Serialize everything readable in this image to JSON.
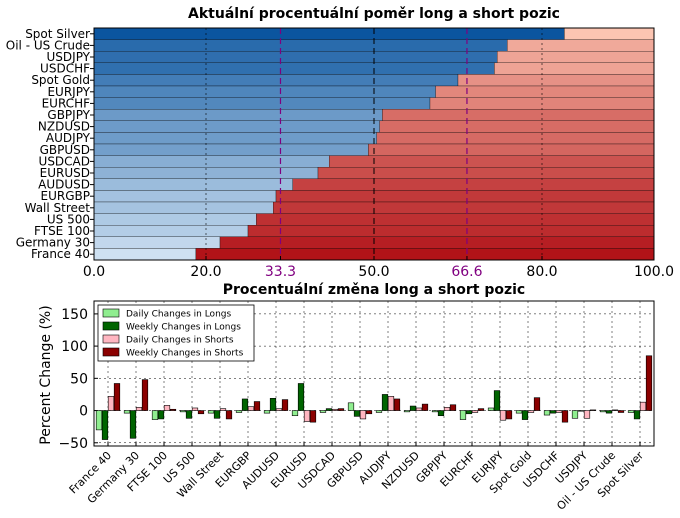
{
  "colors": {
    "long_light": "#cfe1f2",
    "long_dark": "#0b559f",
    "short_light": "#fcc5b2",
    "short_dark": "#b11218",
    "daily_long": "#90ee90",
    "weekly_long": "#006400",
    "daily_short": "#ffb6c1",
    "weekly_short": "#8b0000",
    "threshold": "#800080"
  },
  "chart_data": [
    {
      "type": "bar",
      "orientation": "horizontal",
      "stacked": true,
      "title": "Aktuální procentuální poměr long a short pozic",
      "categories": [
        "Spot Silver",
        "Oil - US Crude",
        "USDJPY",
        "USDCHF",
        "Spot Gold",
        "EURJPY",
        "EURCHF",
        "GBPJPY",
        "NZDUSD",
        "AUDJPY",
        "GBPUSD",
        "USDCAD",
        "EURUSD",
        "AUDUSD",
        "EURGBP",
        "Wall Street",
        "US 500",
        "FTSE 100",
        "Germany 30",
        "France 40"
      ],
      "series": [
        {
          "values": [
            84.0,
            73.8,
            72.0,
            71.5,
            65.0,
            61.0,
            60.0,
            51.5,
            51.0,
            50.5,
            49.0,
            42.0,
            40.0,
            35.5,
            32.5,
            32.0,
            29.0,
            27.5,
            22.5,
            18.2
          ]
        },
        {
          "values": [
            16.0,
            26.2,
            28.0,
            28.5,
            35.0,
            39.0,
            40.0,
            48.5,
            49.0,
            49.5,
            51.0,
            58.0,
            60.0,
            64.5,
            67.5,
            68.0,
            71.0,
            72.5,
            77.5,
            81.8
          ]
        }
      ],
      "xlim": [
        0,
        100
      ],
      "xticks": [
        "0.0",
        "20.0",
        "33.3",
        "50.0",
        "66.6",
        "80.0",
        "100.0"
      ],
      "thresholds": [
        33.3,
        66.6
      ],
      "center_line": 50,
      "grid": true
    },
    {
      "type": "bar",
      "title": "Procentuální změna long a short pozic",
      "ylabel": "Percent Change (%)",
      "ylim": [
        -55,
        170
      ],
      "yticks": [
        "150",
        "100",
        "50",
        "0",
        "−50"
      ],
      "categories": [
        "France 40",
        "Germany 30",
        "FTSE 100",
        "US 500",
        "Wall Street",
        "EURGBP",
        "AUDUSD",
        "EURUSD",
        "USDCAD",
        "GBPUSD",
        "AUDJPY",
        "NZDUSD",
        "GBPJPY",
        "EURCHF",
        "EURJPY",
        "Spot Gold",
        "USDCHF",
        "USDJPY",
        "Oil - US Crude",
        "Spot Silver"
      ],
      "series": [
        {
          "name": "Daily Changes in Longs",
          "values": [
            -30,
            -4,
            -14,
            -2,
            -4,
            -3,
            -4,
            -8,
            -3,
            12,
            -3,
            -2,
            -2,
            -14,
            4,
            -4,
            -7,
            -12,
            -2,
            -3
          ]
        },
        {
          "name": "Weekly Changes in Longs",
          "values": [
            -45,
            -43,
            -13,
            -12,
            -12,
            18,
            19,
            42,
            3,
            -9,
            25,
            7,
            -8,
            -5,
            31,
            -14,
            -4,
            -1,
            -4,
            -13
          ]
        },
        {
          "name": "Daily Changes in Shorts",
          "values": [
            22,
            5,
            8,
            4,
            3,
            6,
            3,
            -17,
            2,
            -13,
            22,
            4,
            5,
            -3,
            -15,
            -3,
            -3,
            -12,
            1,
            13
          ]
        },
        {
          "name": "Weekly Changes in Shorts",
          "values": [
            42,
            48,
            2,
            -5,
            -13,
            14,
            17,
            -18,
            3,
            -5,
            18,
            10,
            9,
            3,
            -13,
            20,
            -18,
            1,
            -3,
            85
          ]
        }
      ],
      "legend": "top-left",
      "grid": true
    }
  ]
}
